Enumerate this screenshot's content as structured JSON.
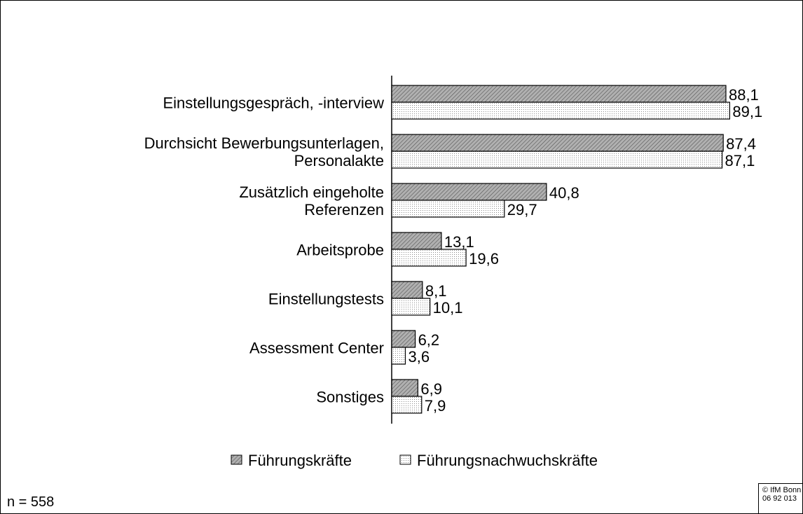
{
  "chart_data": {
    "type": "bar",
    "orientation": "horizontal",
    "categories": [
      "Einstellungsgespräch, -interview",
      "Durchsicht Bewerbungsunterlagen,\nPersonalakte",
      "Zusätzlich eingeholte\nReferenzen",
      "Arbeitsprobe",
      "Einstellungstests",
      "Assessment Center",
      "Sonstiges"
    ],
    "series": [
      {
        "name": "Führungskräfte",
        "color": "#b0b0b0",
        "pattern": "hatch",
        "values": [
          88.1,
          87.4,
          40.8,
          13.1,
          8.1,
          6.2,
          6.9
        ],
        "value_labels": [
          "88,1",
          "87,4",
          "40,8",
          "13,1",
          "8,1",
          "6,2",
          "6,9"
        ]
      },
      {
        "name": "Führungsnachwuchskräfte",
        "color": "#c8c8c8",
        "pattern": "dots",
        "values": [
          89.1,
          87.1,
          29.7,
          19.6,
          10.1,
          3.6,
          7.9
        ],
        "value_labels": [
          "89,1",
          "87,1",
          "29,7",
          "19,6",
          "10,1",
          "3,6",
          "7,9"
        ]
      }
    ],
    "legend": "bottom",
    "note": "n = 558",
    "source": "© IfM Bonn\n06 92 013"
  }
}
